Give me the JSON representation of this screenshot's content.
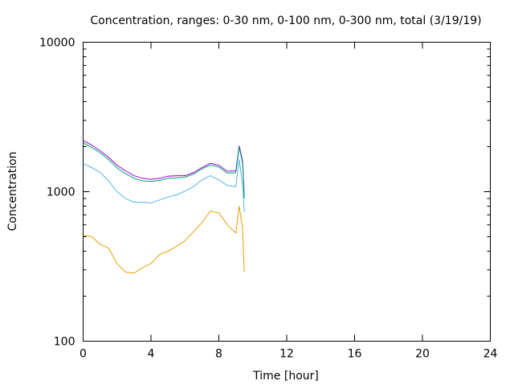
{
  "chart_data": {
    "type": "line",
    "title": "Concentration, ranges: 0-30 nm, 0-100 nm, 0-300 nm, total (3/19/19)",
    "xlabel": "Time [hour]",
    "ylabel": "Concentration",
    "xlim": [
      0,
      24
    ],
    "ylim": [
      100,
      10000
    ],
    "yscale": "log",
    "xticks": [
      "0",
      "4",
      "8",
      "12",
      "16",
      "20",
      "24"
    ],
    "yticks": [
      "100",
      "1000",
      "10000"
    ],
    "grid": false,
    "x": [
      0,
      0.5,
      1,
      1.5,
      2,
      2.5,
      3,
      3.5,
      4,
      4.5,
      5,
      5.5,
      6,
      6.5,
      7,
      7.5,
      8,
      8.5,
      9,
      9.2,
      9.4,
      9.5
    ],
    "series": [
      {
        "name": "total",
        "color": "#9400d3",
        "values": [
          2200,
          2050,
          1880,
          1700,
          1500,
          1380,
          1280,
          1230,
          1210,
          1230,
          1270,
          1280,
          1280,
          1340,
          1450,
          1550,
          1500,
          1370,
          1380,
          2030,
          1600,
          950
        ]
      },
      {
        "name": "0-300 nm",
        "color": "#009e73",
        "values": [
          2120,
          1980,
          1820,
          1640,
          1440,
          1320,
          1230,
          1180,
          1170,
          1190,
          1230,
          1240,
          1250,
          1310,
          1420,
          1510,
          1460,
          1330,
          1340,
          1980,
          1550,
          900
        ]
      },
      {
        "name": "0-100 nm",
        "color": "#56b4e9",
        "values": [
          1540,
          1450,
          1350,
          1180,
          1000,
          900,
          850,
          850,
          840,
          880,
          920,
          950,
          1010,
          1080,
          1200,
          1280,
          1200,
          1100,
          1080,
          1640,
          1100,
          730
        ]
      },
      {
        "name": "0-30 nm",
        "color": "#e69f00",
        "values": [
          512,
          500,
          445,
          420,
          330,
          290,
          285,
          310,
          330,
          380,
          400,
          430,
          470,
          540,
          620,
          740,
          720,
          600,
          530,
          800,
          560,
          290
        ]
      }
    ]
  }
}
